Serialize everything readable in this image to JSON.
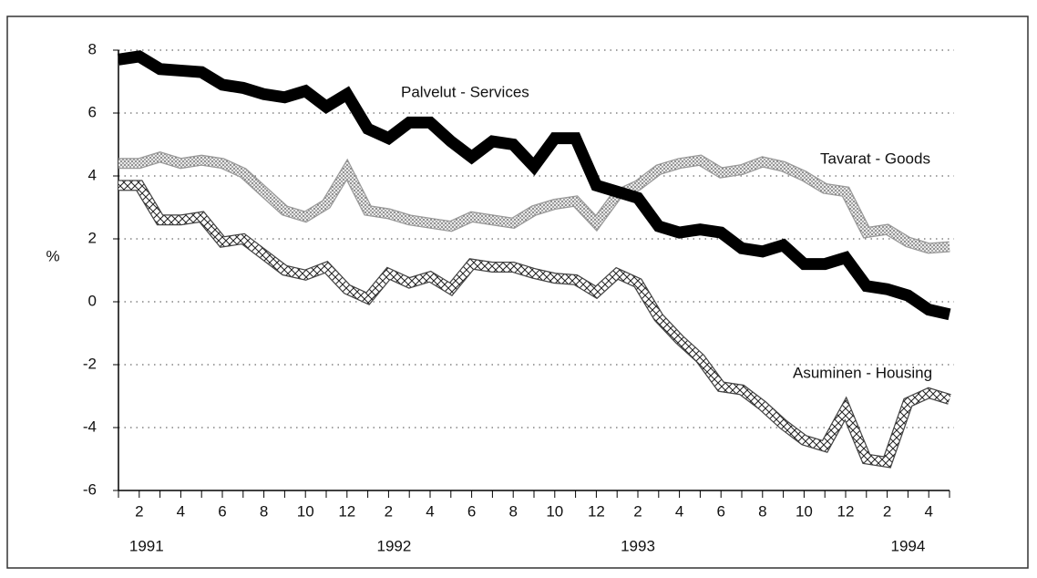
{
  "chart_data": {
    "type": "line",
    "ylabel": "%",
    "categories": [
      null,
      "2",
      null,
      "4",
      null,
      "6",
      null,
      "8",
      null,
      "10",
      null,
      "12",
      null,
      "2",
      null,
      "4",
      null,
      "6",
      null,
      "8",
      null,
      "10",
      null,
      "12",
      null,
      "2",
      null,
      "4",
      null,
      "6",
      null,
      "8",
      null,
      "10",
      null,
      "12",
      null,
      "2",
      null,
      "4",
      null
    ],
    "years": [
      "1991",
      "1992",
      "1993",
      "1994"
    ],
    "ylim": [
      -6,
      8
    ],
    "yticks": [
      -6,
      -4,
      -2,
      0,
      2,
      4,
      6,
      8
    ],
    "grid": true,
    "series": [
      {
        "name": "Palvelut - Services",
        "color": "#000000",
        "pattern": "solid",
        "values": [
          7.7,
          7.8,
          7.4,
          7.35,
          7.3,
          6.9,
          6.8,
          6.6,
          6.5,
          6.7,
          6.2,
          6.6,
          5.5,
          5.2,
          5.7,
          5.7,
          5.1,
          4.6,
          5.1,
          5.0,
          4.3,
          5.2,
          5.2,
          3.7,
          3.5,
          3.3,
          2.4,
          2.2,
          2.3,
          2.2,
          1.7,
          1.6,
          1.8,
          1.2,
          1.2,
          1.4,
          0.5,
          0.4,
          0.2,
          -0.25,
          -0.4
        ]
      },
      {
        "name": "Tavarat - Goods",
        "color": "#999999",
        "pattern": "dots",
        "values": [
          4.4,
          4.4,
          4.6,
          4.4,
          4.5,
          4.4,
          4.1,
          3.5,
          2.9,
          2.7,
          3.1,
          4.2,
          2.9,
          2.8,
          2.6,
          2.5,
          2.4,
          2.7,
          2.6,
          2.5,
          2.9,
          3.1,
          3.2,
          2.5,
          3.4,
          3.7,
          4.2,
          4.4,
          4.5,
          4.1,
          4.2,
          4.45,
          4.3,
          4.0,
          3.6,
          3.5,
          2.2,
          2.3,
          1.9,
          1.7,
          1.75
        ]
      },
      {
        "name": "Asuminen - Housing",
        "color": "#444444",
        "pattern": "crosshatch",
        "values": [
          3.7,
          3.7,
          2.6,
          2.6,
          2.7,
          1.9,
          2.0,
          1.5,
          1.0,
          0.85,
          1.1,
          0.4,
          0.1,
          0.9,
          0.6,
          0.8,
          0.4,
          1.2,
          1.1,
          1.1,
          0.9,
          0.75,
          0.7,
          0.3,
          0.9,
          0.6,
          -0.5,
          -1.2,
          -1.8,
          -2.7,
          -2.8,
          -3.3,
          -3.9,
          -4.4,
          -4.6,
          -3.4,
          -5.0,
          -5.1,
          -3.2,
          -2.9,
          -3.1
        ]
      }
    ]
  }
}
